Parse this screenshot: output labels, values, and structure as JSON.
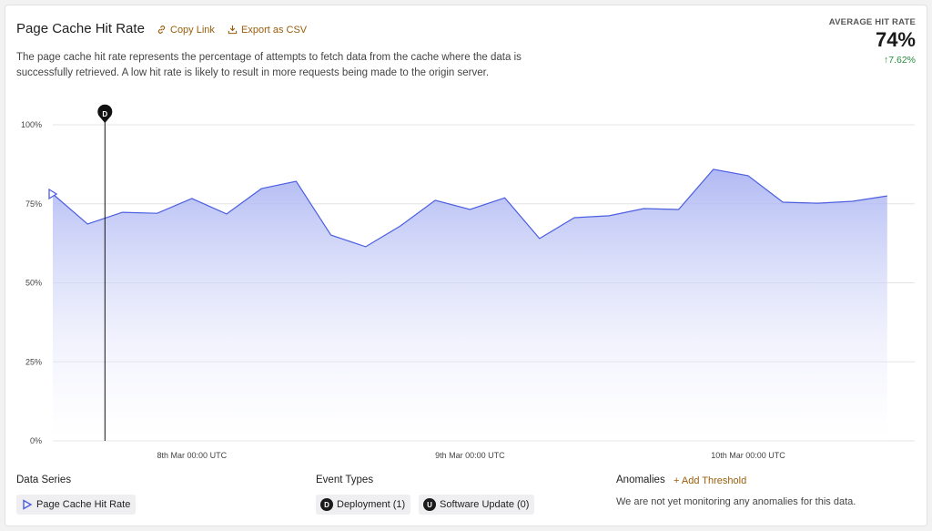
{
  "header": {
    "title": "Page Cache Hit Rate",
    "copy_link": "Copy Link",
    "export": "Export as CSV",
    "description": "The page cache hit rate represents the percentage of attempts to fetch data from the cache where the data is successfully retrieved. A low hit rate is likely to result in more requests being made to the origin server.",
    "summary_label": "AVERAGE HIT RATE",
    "summary_value": "74%",
    "summary_change": "7.62%"
  },
  "chart_data": {
    "type": "area",
    "categories": [
      null,
      null,
      null,
      null,
      "8th Mar 00:00 UTC",
      null,
      null,
      null,
      null,
      null,
      null,
      null,
      "9th Mar 00:00 UTC",
      null,
      null,
      null,
      null,
      null,
      null,
      null,
      "10th Mar 00:00 UTC",
      null,
      null,
      null,
      null
    ],
    "series": [
      {
        "name": "Page Cache Hit Rate",
        "color": "#4c5fe0",
        "values": [
          78.1,
          68.6,
          72.3,
          72.0,
          76.7,
          71.8,
          79.8,
          82.1,
          65.1,
          61.4,
          68.0,
          76.1,
          73.2,
          76.9,
          64.0,
          70.6,
          71.2,
          73.5,
          73.2,
          85.9,
          83.9,
          75.5,
          75.2,
          75.8,
          77.5
        ]
      }
    ],
    "ylim": [
      0,
      100
    ],
    "yticks": [
      {
        "value": 0,
        "label": "0%"
      },
      {
        "value": 25,
        "label": "25%"
      },
      {
        "value": 50,
        "label": "50%"
      },
      {
        "value": 75,
        "label": "75%"
      },
      {
        "value": 100,
        "label": "100%"
      }
    ],
    "grid": true,
    "events": [
      {
        "marker": "D",
        "x": 1.5
      }
    ]
  },
  "footer": {
    "data_series_title": "Data Series",
    "event_types_title": "Event Types",
    "event_types": [
      {
        "badge": "D",
        "label": "Deployment (1)"
      },
      {
        "badge": "U",
        "label": "Software Update (0)"
      }
    ],
    "anomalies_title": "Anomalies",
    "add_threshold": "Add Threshold",
    "anomalies_note": "We are not yet monitoring any anomalies for this data."
  }
}
